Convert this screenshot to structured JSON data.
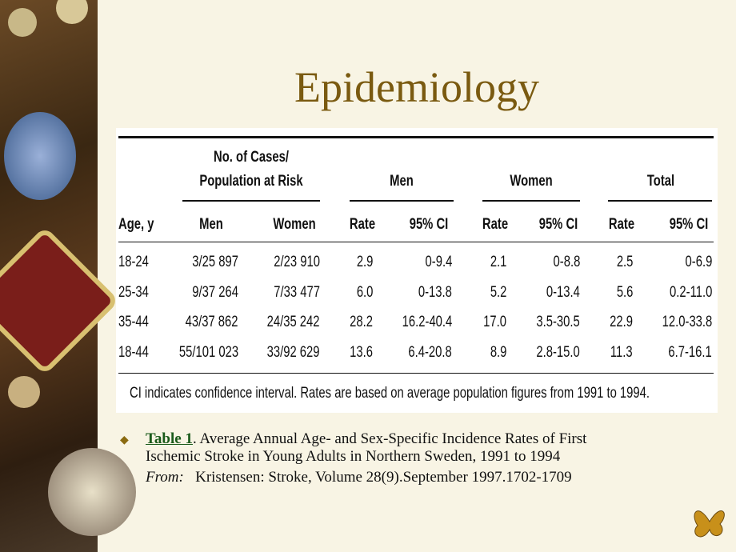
{
  "title": "Epidemiology",
  "table": {
    "cases_header": [
      "No. of Cases/",
      "Population at Risk"
    ],
    "groups": [
      "Men",
      "Women",
      "Total"
    ],
    "columns": [
      "Age, y",
      "Men",
      "Women",
      "Rate",
      "95% CI",
      "Rate",
      "95% CI",
      "Rate",
      "95% CI"
    ],
    "rows": [
      [
        "18-24",
        "3/25 897",
        "2/23 910",
        "2.9",
        "0-9.4",
        "2.1",
        "0-8.8",
        "2.5",
        "0-6.9"
      ],
      [
        "25-34",
        "9/37 264",
        "7/33 477",
        "6.0",
        "0-13.8",
        "5.2",
        "0-13.4",
        "5.6",
        "0.2-11.0"
      ],
      [
        "35-44",
        "43/37 862",
        "24/35 242",
        "28.2",
        "16.2-40.4",
        "17.0",
        "3.5-30.5",
        "22.9",
        "12.0-33.8"
      ],
      [
        "18-44",
        "55/101 023",
        "33/92 629",
        "13.6",
        "6.4-20.8",
        "8.9",
        "2.8-15.0",
        "11.3",
        "6.7-16.1"
      ]
    ],
    "footnote": "CI indicates confidence interval. Rates are based on average population figures from 1991 to 1994."
  },
  "caption": {
    "link": "Table 1",
    "lines": [
      ". Average Annual Age- and Sex-Specific Incidence Rates of First",
      "Ischemic Stroke in Young Adults in Northern Sweden, 1991 to 1994"
    ],
    "source_label": "From:",
    "source": "Kristensen: Stroke, Volume 28(9).September 1997.1702-1709"
  }
}
